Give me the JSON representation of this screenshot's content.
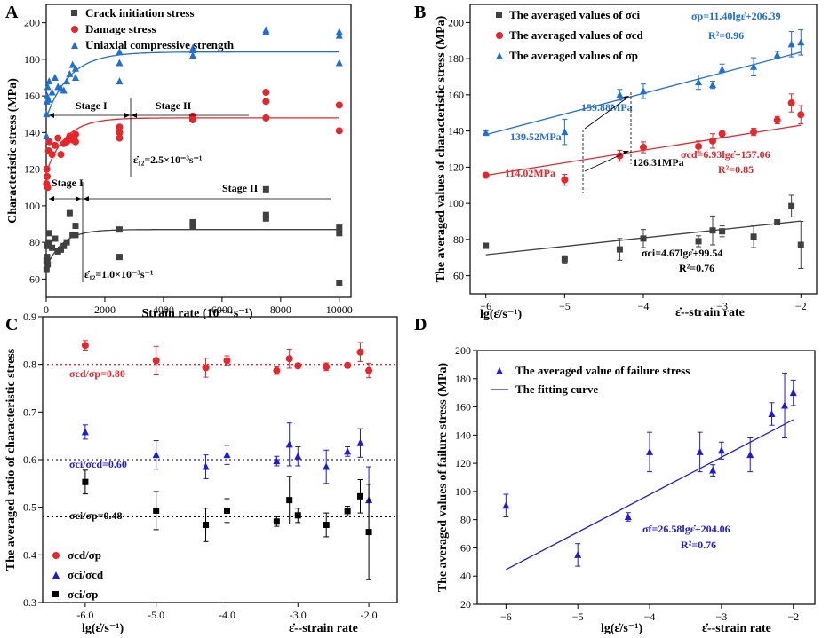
{
  "colors": {
    "black": "#404040",
    "red": "#e8252b",
    "blue": "#1f6fd6",
    "deepblue": "#1c1cd8"
  },
  "chart_data": [
    {
      "id": "A",
      "type": "scatter",
      "panel_label": "A",
      "xlabel": "Strain rate (10⁻⁶·s⁻¹)",
      "ylabel": "Characteristic stress (MPa)",
      "xlim": [
        0,
        10400
      ],
      "ylim": [
        50,
        210
      ],
      "xticks": [
        0,
        2000,
        4000,
        6000,
        8000,
        10000
      ],
      "yticks": [
        60,
        80,
        100,
        120,
        140,
        160,
        180,
        200
      ],
      "legend": [
        "Crack initiation stress",
        "Damage stress",
        "Uniaxial compressive strength"
      ],
      "series": [
        {
          "name": "Crack initiation stress",
          "marker": "square",
          "color": "#404040",
          "x": [
            10,
            10,
            20,
            30,
            50,
            80,
            100,
            200,
            300,
            400,
            500,
            600,
            700,
            800,
            900,
            1000,
            1000,
            2500,
            2500,
            5000,
            5000,
            7500,
            7500,
            7500,
            10000,
            10000,
            10000
          ],
          "y": [
            65,
            70,
            78,
            72,
            68,
            80,
            85,
            77,
            82,
            75,
            76,
            78,
            80,
            96,
            84,
            84,
            89,
            87,
            72,
            91,
            89,
            95,
            93,
            109,
            88,
            85,
            58
          ]
        },
        {
          "name": "Damage stress",
          "marker": "circle",
          "color": "#e8252b",
          "x": [
            10,
            20,
            30,
            50,
            80,
            100,
            200,
            300,
            400,
            500,
            600,
            700,
            800,
            900,
            1000,
            1000,
            2500,
            2500,
            2500,
            5000,
            5000,
            7500,
            7500,
            7500,
            10000,
            10000
          ],
          "y": [
            112,
            120,
            116,
            110,
            130,
            135,
            128,
            133,
            137,
            128,
            134,
            135,
            138,
            136,
            139,
            135,
            140,
            143,
            137,
            149,
            147,
            162,
            157,
            148,
            155,
            141
          ]
        },
        {
          "name": "Uniaxial compressive strength",
          "marker": "triangle",
          "color": "#1f6fd6",
          "x": [
            10,
            10,
            20,
            30,
            50,
            80,
            100,
            200,
            300,
            400,
            500,
            600,
            700,
            800,
            900,
            1000,
            1000,
            2500,
            2500,
            2500,
            5000,
            5000,
            5000,
            7500,
            7500,
            10000,
            10000,
            10000
          ],
          "y": [
            138,
            150,
            157,
            160,
            165,
            158,
            168,
            162,
            170,
            165,
            164,
            163,
            168,
            172,
            177,
            175,
            170,
            184,
            178,
            168,
            186,
            185,
            182,
            196,
            195,
            195,
            193,
            178
          ]
        }
      ],
      "fits": [
        {
          "color": "#404040",
          "a": 87,
          "b": 21,
          "c": 550
        },
        {
          "color": "#e8252b",
          "a": 148,
          "b": 30,
          "c": 650
        },
        {
          "color": "#1f6fd6",
          "a": 184,
          "b": 36,
          "c": 800
        }
      ],
      "annotations": {
        "stage1_upper": "Stage I",
        "stage2_upper": "Stage II",
        "stage1_lower": "Stage I",
        "stage2_lower": "Stage II",
        "eps_upper": "ε̇₁₂=2.5×10⁻³s⁻¹",
        "eps_lower": "ε̇₁₂=1.0×10⁻³s⁻¹"
      }
    },
    {
      "id": "B",
      "type": "scatter",
      "panel_label": "B",
      "xlabel": "lg(ε̇/s⁻¹)",
      "xlabel_extra": "ε̇--strain rate",
      "ylabel": "The averaged values of characteristic stress (MPa)",
      "xlim": [
        -6.2,
        -1.8
      ],
      "ylim": [
        50,
        210
      ],
      "xticks": [
        -6,
        -5,
        -4,
        -3,
        -2
      ],
      "yticks": [
        60,
        80,
        100,
        120,
        140,
        160,
        180,
        200
      ],
      "legend": [
        "The averaged values of σci",
        "The averaged values of σcd",
        "The averaged values of σp"
      ],
      "series": [
        {
          "name": "ci",
          "marker": "square",
          "color": "#404040",
          "x": [
            -6,
            -5,
            -4.3,
            -4,
            -3.3,
            -3.12,
            -3,
            -2.6,
            -2.3,
            -2.12,
            -2
          ],
          "y": [
            76.5,
            69,
            74.5,
            80.5,
            79,
            85,
            84.5,
            81.5,
            89.5,
            98.5,
            77
          ],
          "err": [
            1.5,
            2,
            6,
            5,
            3,
            8,
            3,
            6,
            1,
            6,
            13
          ]
        },
        {
          "name": "cd",
          "marker": "circle",
          "color": "#e8252b",
          "x": [
            -6,
            -5,
            -4.3,
            -4,
            -3.3,
            -3.12,
            -3,
            -2.6,
            -2.3,
            -2.12,
            -2
          ],
          "y": [
            115.5,
            113,
            126.3,
            131,
            131.5,
            134.5,
            138.5,
            139.5,
            146,
            155.5,
            149
          ],
          "err": [
            1,
            3,
            3,
            3,
            3,
            4,
            2,
            2,
            2,
            5,
            5
          ]
        },
        {
          "name": "p",
          "marker": "triangle",
          "color": "#1f6fd6",
          "x": [
            -6,
            -5,
            -4.3,
            -4,
            -3.3,
            -3.12,
            -3,
            -2.6,
            -2.3,
            -2.12,
            -2
          ],
          "y": [
            139,
            139.5,
            160,
            162,
            167,
            165.5,
            174,
            175.5,
            182,
            188,
            189
          ],
          "err": [
            1,
            7,
            3,
            4,
            4,
            2,
            3,
            5,
            2,
            7,
            7
          ]
        }
      ],
      "fits": [
        {
          "color": "#404040",
          "slope": 4.67,
          "intercept": 99.54
        },
        {
          "color": "#e8252b",
          "slope": 6.93,
          "intercept": 157.06
        },
        {
          "color": "#1f6fd6",
          "slope": 11.4,
          "intercept": 206.39
        }
      ],
      "annotations": {
        "p_eq": "σp=11.40lgε̇+206.39",
        "p_r2": "R²=0.96",
        "cd_eq": "σcd=6.93lgε̇+157.06",
        "cd_r2": "R²=0.85",
        "ci_eq": "σci=4.67lgε̇+99.54",
        "ci_r2": "R²=0.76",
        "v1": "159.88MPa",
        "v2": "139.52MPa",
        "v3": "114.02MPa",
        "v4": "126.31MPa"
      }
    },
    {
      "id": "C",
      "type": "scatter",
      "panel_label": "C",
      "xlabel": "lg(ε̇/s⁻¹)",
      "xlabel_extra": "ε̇--strain rate",
      "ylabel": "The averaged ratio of characteristic stress",
      "xlim": [
        -6.6,
        -1.6
      ],
      "ylim": [
        0.3,
        0.9
      ],
      "xticks": [
        -6,
        -5,
        -4,
        -3,
        -2
      ],
      "yticks": [
        0.3,
        0.4,
        0.5,
        0.6,
        0.7,
        0.8,
        0.9
      ],
      "legend": [
        "σcd/σp",
        "σci/σcd",
        "σci/σp"
      ],
      "series": [
        {
          "name": "cd/p",
          "marker": "circle",
          "color": "#e8252b",
          "x": [
            -6,
            -5,
            -4.3,
            -4,
            -3.3,
            -3.12,
            -3,
            -2.6,
            -2.3,
            -2.12,
            -2
          ],
          "y": [
            0.84,
            0.808,
            0.793,
            0.808,
            0.787,
            0.812,
            0.797,
            0.795,
            0.798,
            0.826,
            0.787
          ],
          "err": [
            0.01,
            0.03,
            0.02,
            0.01,
            0.008,
            0.02,
            0.005,
            0.008,
            0.005,
            0.02,
            0.015
          ]
        },
        {
          "name": "ci/cd",
          "marker": "triangle",
          "color": "#1c1cd8",
          "x": [
            -6,
            -5,
            -4.3,
            -4,
            -3.3,
            -3.12,
            -3,
            -2.6,
            -2.3,
            -2.12,
            -2
          ],
          "y": [
            0.658,
            0.61,
            0.585,
            0.61,
            0.597,
            0.632,
            0.607,
            0.585,
            0.617,
            0.635,
            0.515
          ],
          "err": [
            0.015,
            0.03,
            0.025,
            0.02,
            0.01,
            0.045,
            0.02,
            0.035,
            0.01,
            0.03,
            0.07
          ]
        },
        {
          "name": "ci/p",
          "marker": "square",
          "color": "#000000",
          "x": [
            -6,
            -5,
            -4.3,
            -4,
            -3.3,
            -3.12,
            -3,
            -2.6,
            -2.3,
            -2.12,
            -2
          ],
          "y": [
            0.553,
            0.493,
            0.463,
            0.493,
            0.47,
            0.515,
            0.483,
            0.463,
            0.492,
            0.523,
            0.448
          ],
          "err": [
            0.025,
            0.04,
            0.035,
            0.025,
            0.01,
            0.05,
            0.015,
            0.025,
            0.01,
            0.035,
            0.1
          ]
        }
      ],
      "reflines": [
        {
          "y": 0.8,
          "color": "#e8252b",
          "label": "σcd/σp=0.80"
        },
        {
          "y": 0.6,
          "color": "#1c1cd8",
          "label": "σci/σcd=0.60"
        },
        {
          "y": 0.48,
          "color": "#000000",
          "label": "σci/σp=0.48"
        }
      ]
    },
    {
      "id": "D",
      "type": "scatter",
      "panel_label": "D",
      "xlabel": "lg(ε̇/s⁻¹)",
      "xlabel_extra": "ε̇--strain rate",
      "ylabel": "The averaged values of failure stress (MPa)",
      "xlim": [
        -6.4,
        -1.7
      ],
      "ylim": [
        20,
        200
      ],
      "xticks": [
        -6,
        -5,
        -4,
        -3,
        -2
      ],
      "yticks": [
        20,
        40,
        60,
        80,
        100,
        120,
        140,
        160,
        180,
        200
      ],
      "legend": [
        "The averaged value of failure stress",
        "The fitting curve"
      ],
      "series": [
        {
          "name": "failure",
          "marker": "triangle",
          "color": "#1c1cd8",
          "x": [
            -6,
            -5,
            -4.3,
            -4,
            -3.3,
            -3.12,
            -3,
            -2.6,
            -2.3,
            -2.12,
            -2
          ],
          "y": [
            90,
            55,
            82,
            128,
            128,
            115,
            129,
            126,
            155,
            161,
            170
          ],
          "err": [
            8,
            8,
            3,
            14,
            14,
            4,
            6,
            12,
            8,
            23,
            9
          ]
        }
      ],
      "fits": [
        {
          "color": "#1c1cd8",
          "slope": 26.58,
          "intercept": 204.06
        }
      ],
      "annotations": {
        "eq": "σf=26.58lgε̇+204.06",
        "r2": "R²=0.76"
      }
    }
  ]
}
